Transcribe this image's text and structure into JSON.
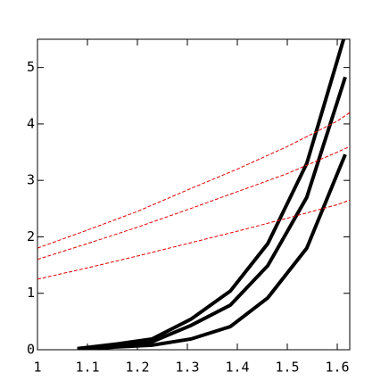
{
  "chart_data": {
    "type": "line",
    "xlim": [
      1,
      1.625
    ],
    "ylim": [
      0,
      5.5
    ],
    "xticks": [
      1,
      1.1,
      1.2,
      1.3,
      1.4,
      1.5,
      1.6
    ],
    "yticks": [
      0,
      1,
      2,
      3,
      4,
      5
    ],
    "series": [
      {
        "color": "#000000",
        "style": "solid",
        "x": [
          1.08,
          1.157,
          1.229,
          1.307,
          1.386,
          1.461,
          1.539,
          1.616
        ],
        "values": [
          0.02,
          0.1,
          0.19,
          0.54,
          1.04,
          1.88,
          3.3,
          5.6
        ]
      },
      {
        "color": "#000000",
        "style": "solid",
        "x": [
          1.08,
          1.157,
          1.229,
          1.307,
          1.386,
          1.461,
          1.539,
          1.616
        ],
        "values": [
          0.02,
          0.08,
          0.14,
          0.43,
          0.79,
          1.49,
          2.7,
          4.83
        ]
      },
      {
        "color": "#000000",
        "style": "solid",
        "x": [
          1.08,
          1.157,
          1.229,
          1.307,
          1.386,
          1.461,
          1.539,
          1.616
        ],
        "values": [
          0.0,
          0.05,
          0.08,
          0.19,
          0.41,
          0.92,
          1.8,
          3.46
        ]
      },
      {
        "color": "#e00000",
        "style": "dashed",
        "x": [
          1.0,
          1.1,
          1.2,
          1.3,
          1.4,
          1.5,
          1.6,
          1.625
        ],
        "values": [
          1.8,
          2.12,
          2.45,
          2.83,
          3.2,
          3.6,
          4.05,
          4.2
        ]
      },
      {
        "color": "#e00000",
        "style": "dashed",
        "x": [
          1.0,
          1.1,
          1.2,
          1.3,
          1.4,
          1.5,
          1.6,
          1.625
        ],
        "values": [
          1.6,
          1.88,
          2.17,
          2.48,
          2.8,
          3.12,
          3.5,
          3.6
        ]
      },
      {
        "color": "#e00000",
        "style": "dashed",
        "x": [
          1.0,
          1.1,
          1.2,
          1.3,
          1.4,
          1.5,
          1.6,
          1.625
        ],
        "values": [
          1.25,
          1.45,
          1.66,
          1.88,
          2.1,
          2.33,
          2.57,
          2.65
        ]
      }
    ]
  }
}
